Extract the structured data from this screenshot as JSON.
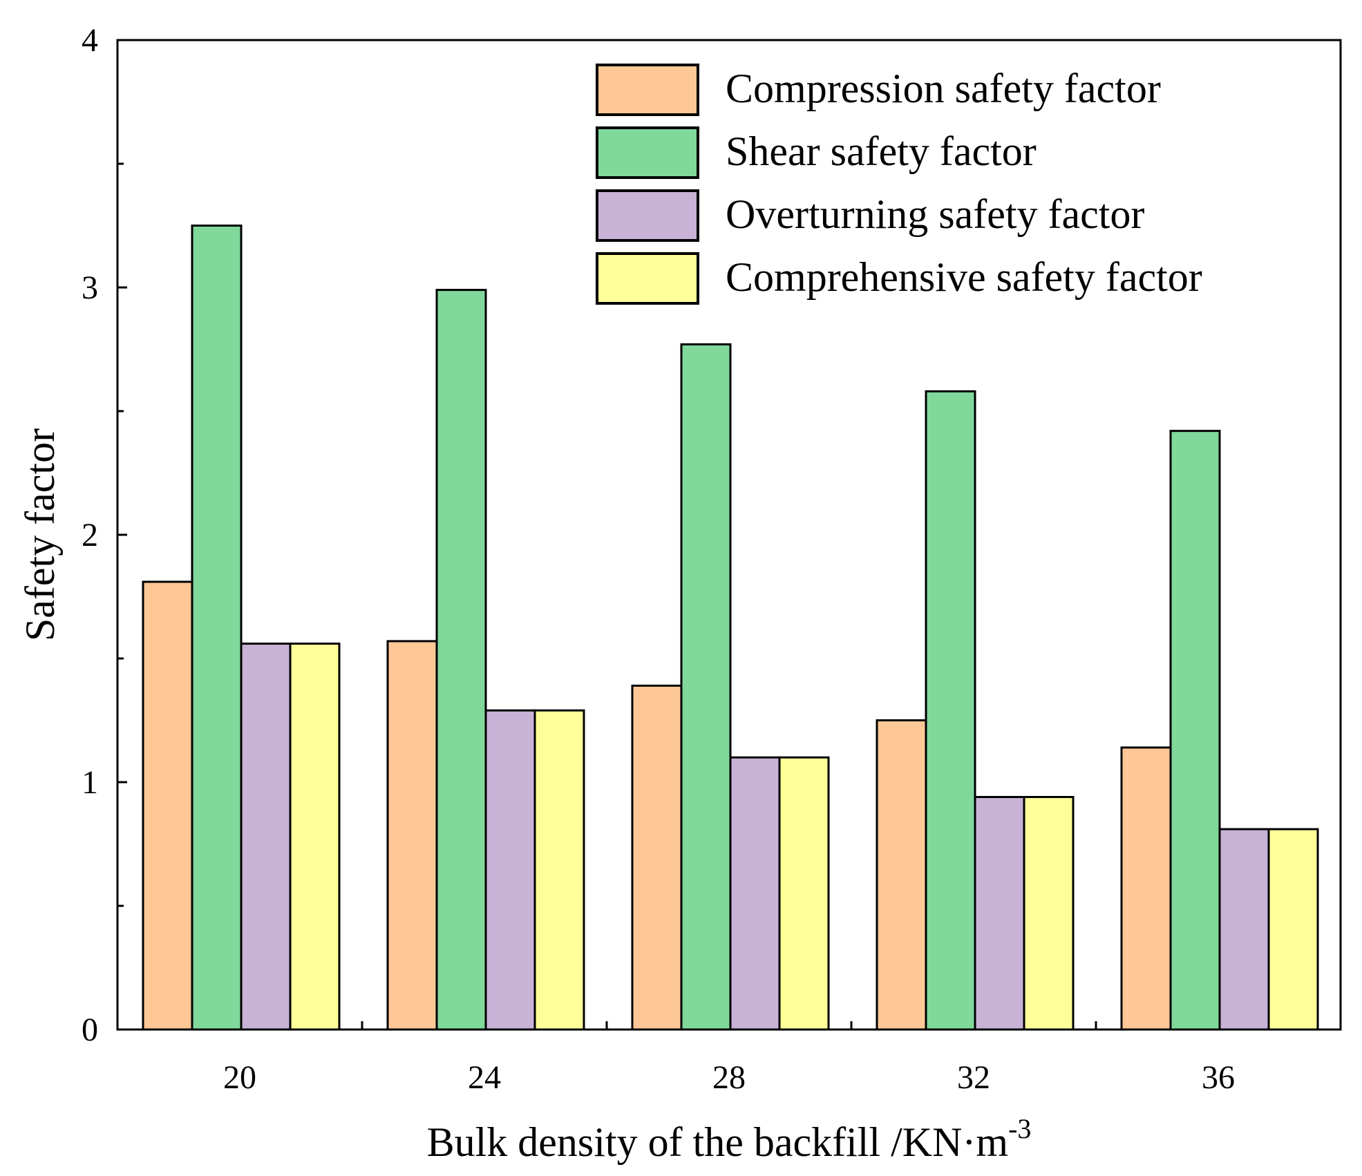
{
  "chart_data": {
    "type": "bar",
    "title": "",
    "xlabel": "Bulk density of the backfill  /KN·m",
    "xlabel_superscript": "-3",
    "ylabel": "Safety factor",
    "categories": [
      "20",
      "24",
      "28",
      "32",
      "36"
    ],
    "ylim": [
      0,
      4
    ],
    "yticks": [
      "0",
      "1",
      "2",
      "3",
      "4"
    ],
    "grid": false,
    "legend_position": "top-right",
    "series": [
      {
        "name": "Compression safety factor",
        "color": "#FDC896",
        "values": [
          1.81,
          1.57,
          1.39,
          1.25,
          1.14
        ]
      },
      {
        "name": "Shear safety factor",
        "color": "#80D89A",
        "values": [
          3.25,
          2.99,
          2.77,
          2.58,
          2.42
        ]
      },
      {
        "name": "Overturning safety factor",
        "color": "#C8B2D6",
        "values": [
          1.56,
          1.29,
          1.1,
          0.94,
          0.81
        ]
      },
      {
        "name": "Comprehensive safety factor",
        "color": "#FFFF99",
        "values": [
          1.56,
          1.29,
          1.1,
          0.94,
          0.81
        ]
      }
    ]
  }
}
